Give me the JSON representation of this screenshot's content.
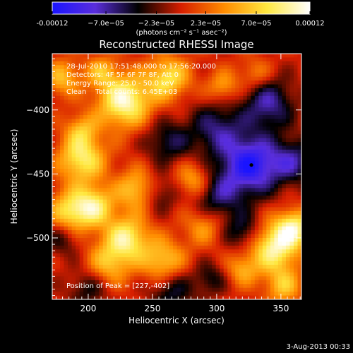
{
  "chart_data": {
    "type": "heatmap",
    "title": "Reconstructed RHESSI Image",
    "xlabel": "Heliocentric X (arcsec)",
    "ylabel": "Heliocentric Y (arcsec)",
    "xlim": [
      172,
      366
    ],
    "ylim": [
      -548,
      -356
    ],
    "x_ticks": [
      200,
      250,
      300,
      350
    ],
    "y_ticks": [
      -400,
      -450,
      -500
    ],
    "colorbar": {
      "range": [
        -0.00012,
        0.00012
      ],
      "tick_values": [
        -0.00012,
        -7e-05,
        -2.3e-05,
        2.3e-05,
        7e-05,
        0.00012
      ],
      "tick_labels": [
        "-0.00012",
        "−7.0e−05",
        "−2.3e−05",
        "2.3e−05",
        "7.0e−05",
        "0.00012"
      ],
      "units": "(photons cm⁻² s⁻¹ asec⁻²)",
      "stops": [
        "#1a14ff",
        "#5a2edc",
        "#000000",
        "#d71e00",
        "#ff8c00",
        "#ffe840",
        "#ffffff"
      ]
    },
    "annotations": [
      "28-Jul-2010 17:51:48.000 to 17:56:20.000",
      "Detectors: 4F 5F 6F 7F 8F, Att 0",
      "Energy Range: 25.0 - 50.0 keV",
      "Clean    Total counts: 6.45E+03"
    ],
    "peak_label": "Position of Peak = [227,-402]",
    "marker": {
      "x": 327,
      "y": -443
    },
    "blobs": [
      {
        "x": 228,
        "y": -393,
        "r": 14,
        "v": 0.00011
      },
      {
        "x": 195,
        "y": -438,
        "r": 13,
        "v": 9e-05
      },
      {
        "x": 186,
        "y": -480,
        "r": 12,
        "v": 8e-05
      },
      {
        "x": 205,
        "y": -475,
        "r": 11,
        "v": 8e-05
      },
      {
        "x": 238,
        "y": -462,
        "r": 11,
        "v": 7e-05
      },
      {
        "x": 230,
        "y": -500,
        "r": 12,
        "v": 9e-05
      },
      {
        "x": 262,
        "y": -375,
        "r": 12,
        "v": 8e-05
      },
      {
        "x": 258,
        "y": -518,
        "r": 12,
        "v": 7e-05
      },
      {
        "x": 216,
        "y": -520,
        "r": 12,
        "v": 6e-05
      },
      {
        "x": 282,
        "y": -455,
        "r": 10,
        "v": 6e-05
      },
      {
        "x": 290,
        "y": -490,
        "r": 11,
        "v": 5e-05
      },
      {
        "x": 345,
        "y": -508,
        "r": 13,
        "v": 0.0001
      },
      {
        "x": 360,
        "y": -492,
        "r": 10,
        "v": 9e-05
      },
      {
        "x": 352,
        "y": -538,
        "r": 10,
        "v": 6e-05
      },
      {
        "x": 180,
        "y": -375,
        "r": 10,
        "v": 6e-05
      },
      {
        "x": 210,
        "y": -370,
        "r": 9,
        "v": 5e-05
      },
      {
        "x": 305,
        "y": -382,
        "r": 9,
        "v": 5e-05
      },
      {
        "x": 330,
        "y": -372,
        "r": 9,
        "v": 4e-05
      },
      {
        "x": 320,
        "y": -525,
        "r": 9,
        "v": 5e-05
      },
      {
        "x": 195,
        "y": -415,
        "r": 9,
        "v": 5e-05
      },
      {
        "x": 327,
        "y": -443,
        "r": 16,
        "v": -0.00011
      },
      {
        "x": 340,
        "y": -395,
        "r": 14,
        "v": -7e-05
      },
      {
        "x": 300,
        "y": -415,
        "r": 15,
        "v": -6e-05
      },
      {
        "x": 300,
        "y": -468,
        "r": 14,
        "v": -6e-05
      },
      {
        "x": 360,
        "y": -440,
        "r": 12,
        "v": -6e-05
      },
      {
        "x": 262,
        "y": -425,
        "r": 12,
        "v": -5e-05
      },
      {
        "x": 255,
        "y": -465,
        "r": 10,
        "v": -4e-05
      },
      {
        "x": 265,
        "y": -542,
        "r": 12,
        "v": -5e-05
      },
      {
        "x": 200,
        "y": -540,
        "r": 11,
        "v": -4e-05
      },
      {
        "x": 180,
        "y": -500,
        "r": 10,
        "v": -4e-05
      },
      {
        "x": 320,
        "y": -495,
        "r": 10,
        "v": -5e-05
      },
      {
        "x": 295,
        "y": -532,
        "r": 9,
        "v": -4e-05
      }
    ]
  },
  "footer": {
    "date": "3-Aug-2013 00:33"
  }
}
